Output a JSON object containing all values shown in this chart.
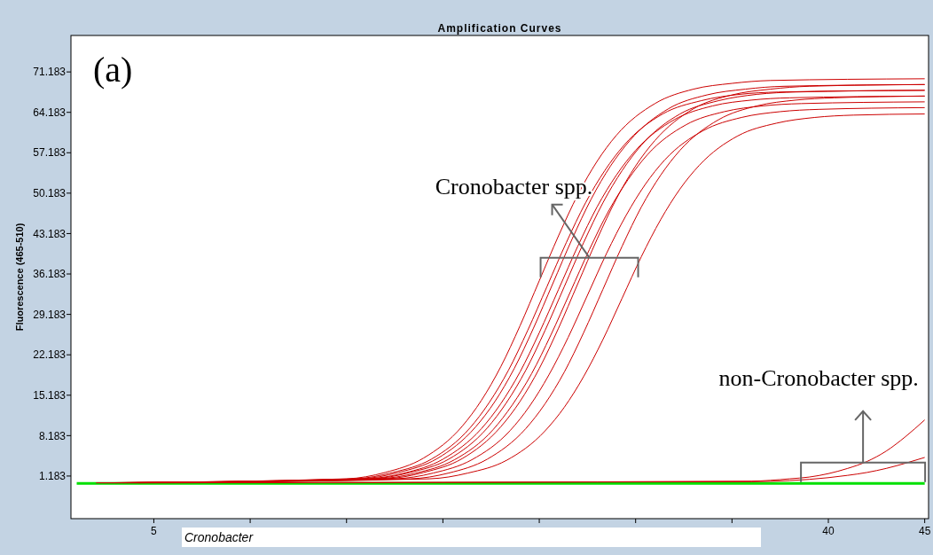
{
  "chart_data": {
    "type": "line",
    "title": "Amplification Curves",
    "ylabel": "Fluorescence (465-510)",
    "xlim": [
      0.7,
      45.2
    ],
    "ylim": [
      -6.2,
      77.5
    ],
    "xticks": [
      5,
      {
        "value": 10,
        "label": null
      },
      {
        "value": 15,
        "label": null
      },
      {
        "value": 20,
        "label": null
      },
      {
        "value": 25,
        "label": null
      },
      {
        "value": 30,
        "label": null
      },
      {
        "value": 35,
        "label": null
      },
      40,
      45
    ],
    "yticks": [
      1.183,
      8.183,
      15.183,
      22.183,
      29.183,
      36.183,
      43.183,
      50.183,
      57.183,
      64.183,
      71.183
    ],
    "grid": false,
    "marker": "none",
    "line_style": "solid",
    "series": [
      {
        "color": "#00e000",
        "x": [
          1,
          45
        ],
        "values": [
          -0.1,
          -0.1
        ]
      },
      {
        "color": "#cc0000",
        "x": [
          2,
          15,
          17,
          19,
          21,
          22,
          23,
          24,
          25,
          26,
          27,
          28,
          29,
          31,
          33,
          35,
          37,
          45
        ],
        "values": [
          0,
          0.7,
          1.8,
          4.3,
          9.8,
          14.3,
          20.1,
          27.2,
          35,
          42.8,
          49.9,
          55.7,
          60.2,
          65.7,
          68.2,
          69.2,
          69.7,
          70
        ]
      },
      {
        "color": "#cc0000",
        "x": [
          2.2,
          15.4,
          17.4,
          19.4,
          21.4,
          22.4,
          23.4,
          24.4,
          25.4,
          26.4,
          27.4,
          28.4,
          29.4,
          31.4,
          33.4,
          35.4,
          37.4,
          45
        ],
        "values": [
          0,
          0.7,
          1.8,
          4.1,
          9.5,
          13.9,
          19.5,
          26.4,
          34,
          41.6,
          48.5,
          54.1,
          58.5,
          63.9,
          66.2,
          67.3,
          67.7,
          68
        ]
      },
      {
        "color": "#cc0000",
        "x": [
          2.4,
          15.7,
          17.7,
          19.7,
          21.7,
          22.7,
          23.7,
          24.7,
          25.7,
          26.7,
          27.7,
          28.7,
          29.7,
          31.7,
          33.7,
          35.7,
          37.7,
          45
        ],
        "values": [
          0,
          0.7,
          1.8,
          4.2,
          9.7,
          14.1,
          19.8,
          26.8,
          34.5,
          42.2,
          49.2,
          54.9,
          59.3,
          64.8,
          67.2,
          68.2,
          68.7,
          69
        ]
      },
      {
        "color": "#cc0000",
        "x": [
          2.6,
          16,
          18,
          20,
          22,
          23,
          24,
          25,
          26,
          27,
          28,
          29,
          30,
          32,
          34,
          36,
          38,
          45
        ],
        "values": [
          0,
          0.7,
          1.7,
          4.1,
          9.4,
          13.7,
          19.2,
          26,
          33.5,
          41,
          47.8,
          53.3,
          57.6,
          62.9,
          65.3,
          66.3,
          66.7,
          67
        ]
      },
      {
        "color": "#cc0000",
        "x": [
          2.8,
          16.3,
          18.3,
          20.3,
          22.3,
          23.3,
          24.3,
          25.3,
          26.3,
          27.3,
          28.3,
          29.3,
          30.3,
          32.3,
          34.3,
          36.3,
          38.3,
          45
        ],
        "values": [
          0,
          0.7,
          1.8,
          4.1,
          9.5,
          13.9,
          19.5,
          26.4,
          34,
          41.6,
          48.5,
          54.1,
          58.5,
          63.9,
          66.2,
          67.3,
          67.7,
          68
        ]
      },
      {
        "color": "#cc0000",
        "x": [
          3,
          16.6,
          18.6,
          20.6,
          22.6,
          23.6,
          24.6,
          25.6,
          26.6,
          27.6,
          28.6,
          29.6,
          30.6,
          32.6,
          34.6,
          36.6,
          38.6,
          45
        ],
        "values": [
          0,
          0.7,
          1.7,
          4,
          9.2,
          13.5,
          18.9,
          25.6,
          33,
          40.4,
          47.1,
          52.5,
          56.8,
          62,
          64.3,
          65.3,
          65.7,
          66
        ]
      },
      {
        "color": "#cc0000",
        "x": [
          3.2,
          17,
          19,
          21,
          23,
          24,
          25,
          26,
          27,
          28,
          29,
          30,
          31,
          33,
          35,
          37,
          39,
          45
        ],
        "values": [
          0,
          0.7,
          1.8,
          4.2,
          9.7,
          14.1,
          19.8,
          26.8,
          34.5,
          42.2,
          49.2,
          54.9,
          59.3,
          64.8,
          67.2,
          68.2,
          68.7,
          69
        ]
      },
      {
        "color": "#cc0000",
        "x": [
          3.4,
          17.5,
          19.5,
          21.5,
          23.5,
          24.5,
          25.5,
          26.5,
          27.5,
          28.5,
          29.5,
          30.5,
          31.5,
          33.5,
          35.5,
          37.5,
          39.5,
          45
        ],
        "values": [
          0,
          0.7,
          1.7,
          4,
          9.1,
          13.3,
          18.7,
          25.2,
          32.5,
          39.8,
          46.3,
          51.7,
          55.9,
          61,
          63.3,
          64.3,
          64.7,
          65
        ]
      },
      {
        "color": "#cc0000",
        "x": [
          3.6,
          18.3,
          20.3,
          22.3,
          24.3,
          25.3,
          26.3,
          27.3,
          28.3,
          29.3,
          30.3,
          31.3,
          32.3,
          34.3,
          36.3,
          38.3,
          40.3,
          45
        ],
        "values": [
          0,
          0.7,
          1.7,
          4.1,
          9.4,
          13.7,
          19.2,
          26,
          33.5,
          41,
          47.8,
          53.3,
          57.6,
          62.9,
          65.3,
          66.3,
          66.7,
          67
        ]
      },
      {
        "color": "#cc0000",
        "x": [
          3.8,
          19.3,
          21.3,
          23.3,
          25.3,
          26.3,
          27.3,
          28.3,
          29.3,
          30.3,
          31.3,
          32.3,
          33.3,
          35.3,
          37.3,
          39.3,
          41.3,
          45
        ],
        "values": [
          0,
          0.7,
          1.7,
          3.9,
          9,
          13.1,
          18.4,
          24.8,
          32,
          39.2,
          45.6,
          50.9,
          55,
          60.1,
          62.3,
          63.3,
          63.7,
          63.9
        ]
      },
      {
        "color": "#cc0000",
        "x": [
          4,
          36,
          38,
          39,
          40,
          41,
          42,
          43,
          44,
          45
        ],
        "values": [
          0,
          0.3,
          0.7,
          1,
          1.6,
          2.5,
          3.7,
          5.5,
          8,
          10.9
        ]
      },
      {
        "color": "#cc0000",
        "x": [
          4.2,
          36,
          38,
          39,
          40,
          41,
          42,
          43,
          44,
          45
        ],
        "values": [
          0,
          0.2,
          0.4,
          0.6,
          0.9,
          1.3,
          1.8,
          2.5,
          3.4,
          4.4
        ]
      }
    ],
    "annotations": [
      "(a)",
      {
        "text": "Cronobacter spp.",
        "x": 27.6,
        "y": 39
      },
      {
        "text": "non-Cronobacter spp.",
        "x": 41.8,
        "y": 3.5
      },
      "Cronobacter"
    ]
  }
}
